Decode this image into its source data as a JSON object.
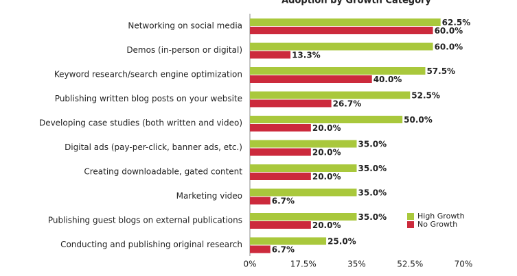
{
  "chart_data": {
    "type": "bar",
    "orientation": "horizontal",
    "title": "Adoption by Growth Category",
    "categories": [
      "Networking on social media",
      "Demos (in-person or digital)",
      "Keyword research/search engine optimization",
      "Publishing written blog posts on your website",
      "Developing case studies (both written and video)",
      "Digital ads (pay-per-click, banner ads, etc.)",
      "Creating downloadable, gated content",
      "Marketing video",
      "Publishing guest blogs on external publications",
      "Conducting and publishing original research"
    ],
    "series": [
      {
        "name": "High Growth",
        "color": "#a9c83c",
        "values": [
          62.5,
          60,
          57.5,
          52.5,
          50,
          35,
          35,
          35,
          35,
          25
        ],
        "value_labels": [
          "62.5%",
          "60.0%",
          "57.5%",
          "52.5%",
          "50.0%",
          "35.0%",
          "35.0%",
          "35.0%",
          "35.0%",
          "25.0%"
        ]
      },
      {
        "name": "No Growth",
        "color": "#cc2a3c",
        "values": [
          60,
          13.3,
          40,
          26.7,
          20,
          20,
          20,
          6.7,
          20,
          6.7
        ],
        "value_labels": [
          "60.0%",
          "13.3%",
          "40.0%",
          "26.7%",
          "20.0%",
          "20.0%",
          "20.0%",
          "6.7%",
          "20.0%",
          "6.7%"
        ]
      }
    ],
    "xlim": [
      0,
      70
    ],
    "xticks": [
      {
        "value": 0,
        "label": "0%"
      },
      {
        "value": 17.5,
        "label": "17.5%"
      },
      {
        "value": 35,
        "label": "35%"
      },
      {
        "value": 52.5,
        "label": "52.5%"
      },
      {
        "value": 70,
        "label": "70%"
      }
    ],
    "legend": "lower right"
  }
}
